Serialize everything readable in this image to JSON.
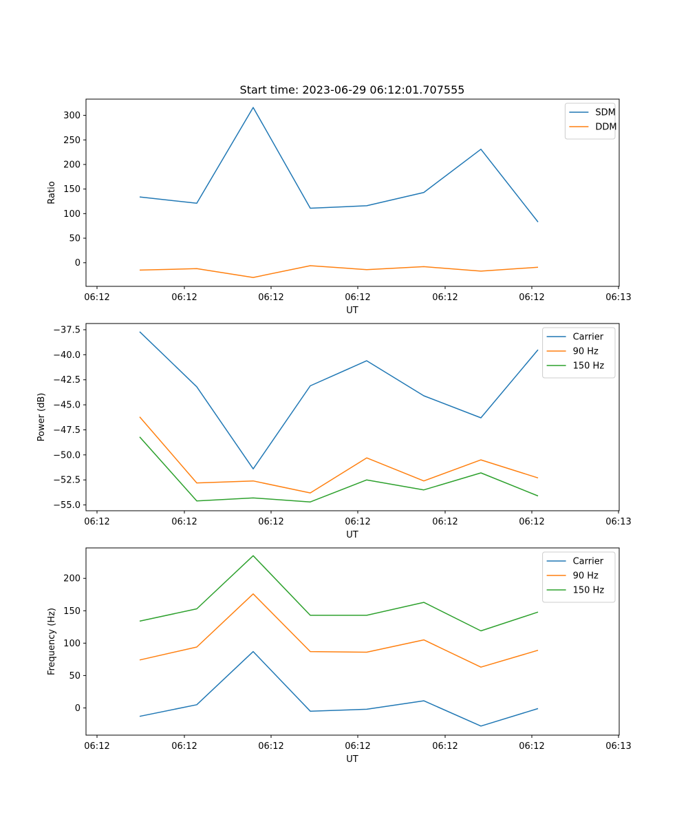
{
  "figure_title": "Start time: 2023-06-29 06:12:01.707555",
  "colors": {
    "C0": "#1f77b4",
    "C1": "#ff7f0e",
    "C2": "#2ca02c"
  },
  "chart_data": [
    {
      "type": "line",
      "xlabel": "UT",
      "ylabel": "Ratio",
      "x_tick_labels": [
        "06:12",
        "06:12",
        "06:12",
        "06:12",
        "06:12",
        "06:12",
        "06:13"
      ],
      "y_ticks": [
        0,
        50,
        100,
        150,
        200,
        250,
        300
      ],
      "ylim": [
        -48,
        333
      ],
      "grid": false,
      "legend_position": "top-right",
      "series": [
        {
          "name": "SDM",
          "color": "#1f77b4",
          "values": [
            134,
            121,
            316,
            111,
            116,
            143,
            231,
            83
          ]
        },
        {
          "name": "DDM",
          "color": "#ff7f0e",
          "values": [
            -15,
            -12,
            -30,
            -6,
            -14,
            -8,
            -17,
            -9
          ]
        }
      ]
    },
    {
      "type": "line",
      "xlabel": "UT",
      "ylabel": "Power (dB)",
      "x_tick_labels": [
        "06:12",
        "06:12",
        "06:12",
        "06:12",
        "06:12",
        "06:12",
        "06:13"
      ],
      "y_ticks": [
        -55.0,
        -52.5,
        -50.0,
        -47.5,
        -45.0,
        -42.5,
        -40.0,
        -37.5
      ],
      "y_tick_labels": [
        "−55.0",
        "−52.5",
        "−50.0",
        "−47.5",
        "−45.0",
        "−42.5",
        "−40.0",
        "−37.5"
      ],
      "ylim": [
        -55.58,
        -36.88
      ],
      "grid": false,
      "legend_position": "top-right",
      "series": [
        {
          "name": "Carrier",
          "color": "#1f77b4",
          "values": [
            -37.7,
            -43.2,
            -51.4,
            -43.1,
            -40.6,
            -44.1,
            -46.3,
            -39.5
          ]
        },
        {
          "name": "90 Hz",
          "color": "#ff7f0e",
          "values": [
            -46.2,
            -52.8,
            -52.6,
            -53.8,
            -50.3,
            -52.6,
            -50.5,
            -52.3
          ]
        },
        {
          "name": "150 Hz",
          "color": "#2ca02c",
          "values": [
            -48.2,
            -54.6,
            -54.3,
            -54.7,
            -52.5,
            -53.5,
            -51.8,
            -54.1
          ]
        }
      ]
    },
    {
      "type": "line",
      "xlabel": "UT",
      "ylabel": "Frequency (Hz)",
      "x_tick_labels": [
        "06:12",
        "06:12",
        "06:12",
        "06:12",
        "06:12",
        "06:12",
        "06:13"
      ],
      "y_ticks": [
        0,
        50,
        100,
        150,
        200
      ],
      "ylim": [
        -42,
        247
      ],
      "grid": false,
      "legend_position": "top-right",
      "series": [
        {
          "name": "Carrier",
          "color": "#1f77b4",
          "values": [
            -13,
            5,
            87,
            -5,
            -2,
            11,
            -28,
            -1
          ]
        },
        {
          "name": "90 Hz",
          "color": "#ff7f0e",
          "values": [
            74,
            94,
            176,
            87,
            86,
            105,
            63,
            89
          ]
        },
        {
          "name": "150 Hz",
          "color": "#2ca02c",
          "values": [
            134,
            153,
            235,
            143,
            143,
            163,
            119,
            148
          ]
        }
      ]
    }
  ]
}
